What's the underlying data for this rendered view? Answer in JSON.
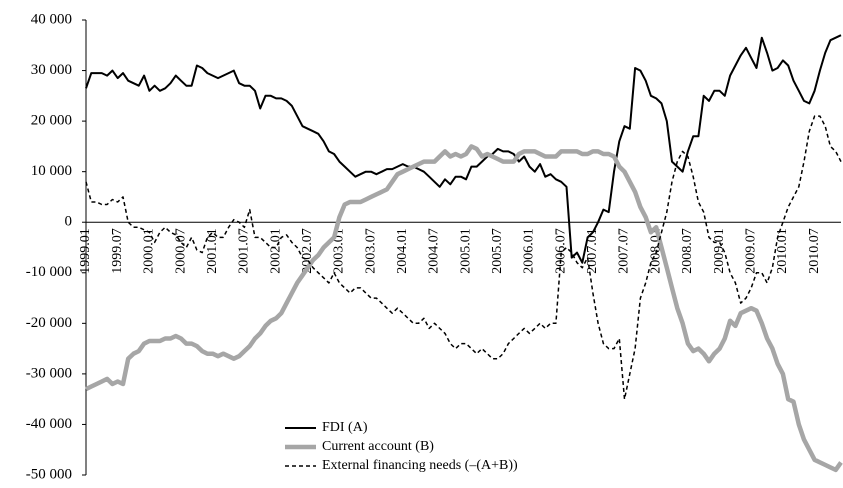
{
  "chart_data": {
    "type": "line",
    "categories": [
      "1999.01",
      null,
      null,
      null,
      null,
      null,
      "1999.07",
      null,
      null,
      null,
      null,
      null,
      "2000.01",
      null,
      null,
      null,
      null,
      null,
      "2000.07",
      null,
      null,
      null,
      null,
      null,
      "2001.01",
      null,
      null,
      null,
      null,
      null,
      "2001.07",
      null,
      null,
      null,
      null,
      null,
      "2002.01",
      null,
      null,
      null,
      null,
      null,
      "2002.07",
      null,
      null,
      null,
      null,
      null,
      "2003.01",
      null,
      null,
      null,
      null,
      null,
      "2003.07",
      null,
      null,
      null,
      null,
      null,
      "2004.01",
      null,
      null,
      null,
      null,
      null,
      "2004.07",
      null,
      null,
      null,
      null,
      null,
      "2005.01",
      null,
      null,
      null,
      null,
      null,
      "2005.07",
      null,
      null,
      null,
      null,
      null,
      "2006.01",
      null,
      null,
      null,
      null,
      null,
      "2006.07",
      null,
      null,
      null,
      null,
      null,
      "2007.01",
      null,
      null,
      null,
      null,
      null,
      "2007.07",
      null,
      null,
      null,
      null,
      null,
      "2008.01",
      null,
      null,
      null,
      null,
      null,
      "2008.07",
      null,
      null,
      null,
      null,
      null,
      "2009.01",
      null,
      null,
      null,
      null,
      null,
      "2009.07",
      null,
      null,
      null,
      null,
      null,
      "2010.01",
      null,
      null,
      null,
      null,
      null,
      "2010.07",
      null,
      null,
      null,
      null,
      null
    ],
    "series": [
      {
        "name": "FDI (A)",
        "color": "#000000",
        "width": 2,
        "dash": false,
        "values": [
          26.5,
          29.5,
          29.5,
          29.5,
          29,
          30,
          28.5,
          29.5,
          28,
          27.5,
          27,
          29,
          26,
          27,
          26,
          26.5,
          27.5,
          29,
          28,
          27,
          27,
          31,
          30.5,
          29.5,
          29,
          28.5,
          29,
          29.5,
          30,
          27.5,
          27,
          27,
          26,
          22.5,
          25,
          25,
          24.5,
          24.5,
          24,
          23,
          21,
          19,
          18.5,
          18,
          17.5,
          16,
          14,
          13.5,
          12,
          11,
          10,
          9,
          9.5,
          10,
          10,
          9.5,
          10,
          10.5,
          10.5,
          11,
          11.5,
          11,
          11,
          10.5,
          10,
          9,
          8,
          7,
          8.5,
          7.5,
          9,
          9,
          8.5,
          11,
          11,
          12,
          13,
          13.5,
          14.5,
          14,
          14,
          13.5,
          12,
          13,
          11,
          10,
          11.5,
          9,
          9.5,
          8.5,
          8,
          7,
          -7,
          -6,
          -8,
          -3,
          -2,
          0,
          2.5,
          2,
          10,
          16,
          19,
          18.5,
          30.5,
          30,
          28,
          25,
          24.5,
          23.5,
          20,
          12,
          11,
          10,
          14,
          17,
          17,
          25,
          24,
          26,
          26,
          25,
          29,
          31,
          33,
          34.5,
          32.5,
          30.5,
          36.5,
          33.5,
          30,
          30.5,
          32,
          31,
          28,
          26,
          24,
          23.5,
          26,
          30,
          33.5,
          36,
          36.5,
          37
        ]
      },
      {
        "name": "Current account (B)",
        "color": "#a6a6a6",
        "width": 4.5,
        "dash": false,
        "values": [
          -33,
          -32.5,
          -32,
          -31.5,
          -31,
          -32,
          -31.5,
          -32,
          -27,
          -26,
          -25.5,
          -24,
          -23.5,
          -23.5,
          -23.5,
          -23,
          -23,
          -22.5,
          -23,
          -24,
          -24,
          -24.5,
          -25.5,
          -26,
          -26,
          -26.5,
          -26,
          -26.5,
          -27,
          -26.5,
          -25.5,
          -24.5,
          -23,
          -22,
          -20.5,
          -19.5,
          -19,
          -18,
          -16,
          -14,
          -12,
          -10.5,
          -9,
          -7.5,
          -6.5,
          -5,
          -4,
          -3,
          1,
          3.5,
          4,
          4,
          4,
          4.5,
          5,
          5.5,
          6,
          6.5,
          8,
          9.5,
          10,
          10.5,
          11,
          11.5,
          12,
          12,
          12,
          13,
          14,
          13,
          13.5,
          13,
          13.5,
          15,
          14.5,
          13,
          13.5,
          13,
          12.5,
          12,
          12,
          12,
          13.5,
          14,
          14,
          14,
          13.5,
          13,
          13,
          13,
          14,
          14,
          14,
          14,
          13.5,
          13.5,
          14,
          14,
          13.5,
          13.5,
          13,
          11,
          10,
          8,
          6,
          3,
          1,
          -2,
          -1,
          -5,
          -9,
          -13,
          -17,
          -20,
          -24,
          -25.5,
          -25,
          -26,
          -27.5,
          -26,
          -25,
          -23,
          -19.5,
          -20.5,
          -18,
          -17.5,
          -17,
          -17.5,
          -20,
          -23,
          -25,
          -28,
          -30,
          -35,
          -35.5,
          -40,
          -43,
          -45,
          -47,
          -47.5,
          -48,
          -48.5,
          -49,
          -47.5
        ]
      },
      {
        "name": "External financing needs (–(A+B))",
        "color": "#000000",
        "width": 1.5,
        "dash": true,
        "values": [
          8,
          4,
          4,
          3.5,
          3.5,
          4.5,
          4,
          5,
          0,
          -1,
          -1,
          -1.5,
          -2,
          -4,
          -2,
          -1,
          -2,
          -2.5,
          -4,
          -5,
          -3,
          -5.5,
          -6,
          -3,
          -2,
          -3,
          -3,
          -1,
          0.5,
          0,
          -1,
          2.5,
          -3,
          -3,
          -4,
          -5,
          -5,
          -3,
          -2.5,
          -4,
          -5,
          -7,
          -7.5,
          -9,
          -10,
          -11,
          -12,
          -10,
          -12,
          -13,
          -14,
          -13,
          -13,
          -14,
          -15,
          -15,
          -16,
          -17,
          -18,
          -17,
          -18,
          -19,
          -20,
          -20,
          -19,
          -21,
          -20,
          -21,
          -22,
          -24,
          -25,
          -24,
          -24,
          -25,
          -26,
          -25,
          -26,
          -27,
          -27,
          -26,
          -24,
          -23,
          -22,
          -21,
          -22,
          -21,
          -20,
          -21,
          -20,
          -20,
          -6,
          -5,
          -6,
          -8,
          -9,
          -7,
          -14,
          -20,
          -24,
          -25,
          -25,
          -23,
          -35,
          -30,
          -25,
          -15,
          -12,
          -8,
          -6,
          -2,
          2,
          8,
          12,
          14,
          13,
          9,
          4,
          2,
          -3,
          -4,
          -4,
          -6,
          -10,
          -12,
          -16,
          -15,
          -13,
          -10,
          -10,
          -12,
          -9,
          -3,
          0,
          3,
          5,
          7,
          12,
          18,
          21,
          21,
          19,
          15,
          14,
          12
        ]
      }
    ],
    "ylim": [
      -50,
      40
    ],
    "yticks": [
      {
        "value": -50,
        "label": "-50 000"
      },
      {
        "value": -40,
        "label": "-40 000"
      },
      {
        "value": -30,
        "label": "-30 000"
      },
      {
        "value": -20,
        "label": "-20 000"
      },
      {
        "value": -10,
        "label": "-10 000"
      },
      0,
      {
        "value": 10,
        "label": "10 000"
      },
      {
        "value": 20,
        "label": "20 000"
      },
      {
        "value": 30,
        "label": "30 000"
      },
      {
        "value": 40,
        "label": "40 000"
      }
    ],
    "legend": "bottom-center"
  }
}
